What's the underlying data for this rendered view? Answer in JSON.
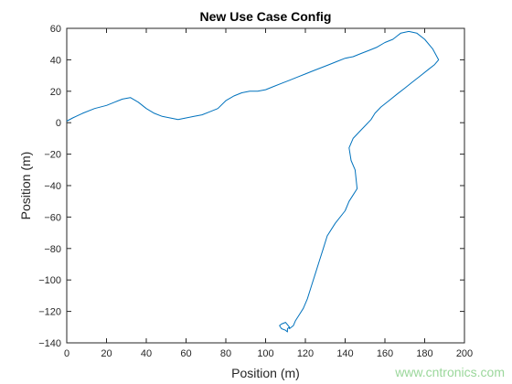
{
  "chart_data": {
    "type": "line",
    "title": "New Use Case Config",
    "xlabel": "Position (m)",
    "ylabel": "Position (m)",
    "xlim": [
      0,
      200
    ],
    "ylim": [
      -140,
      60
    ],
    "xticks": [
      0,
      20,
      40,
      60,
      80,
      100,
      120,
      140,
      160,
      180,
      200
    ],
    "yticks": [
      60,
      40,
      20,
      0,
      -20,
      -40,
      -60,
      -80,
      -100,
      -120,
      -140
    ],
    "grid": false,
    "line_color": "#0072bd",
    "series": [
      {
        "x": [
          0,
          3,
          8,
          14,
          20,
          24,
          28,
          32,
          36,
          40,
          44,
          48,
          52,
          56,
          60,
          64,
          68,
          72,
          76,
          80,
          84,
          88,
          92,
          96,
          100,
          104,
          108,
          112,
          116,
          120,
          124,
          128,
          132,
          136,
          140,
          144,
          148,
          152,
          156,
          160,
          164,
          166,
          168,
          172,
          176,
          180,
          184,
          187,
          185,
          182,
          178,
          174,
          170,
          166,
          162,
          158,
          155,
          153,
          150,
          147,
          144,
          142,
          143,
          145,
          146,
          144,
          142,
          140,
          135,
          131,
          129,
          127,
          125,
          123,
          121,
          119,
          117,
          115,
          114,
          112,
          112,
          111,
          111,
          110,
          108,
          107,
          108,
          110,
          112
        ],
        "y": [
          1,
          3,
          6,
          9,
          11,
          13,
          15,
          16,
          13,
          9,
          6,
          4,
          3,
          2,
          3,
          4,
          5,
          7,
          9,
          14,
          17,
          19,
          20,
          20,
          21,
          23,
          25,
          27,
          29,
          31,
          33,
          35,
          37,
          39,
          41,
          42,
          44,
          46,
          48,
          51,
          53,
          55,
          57,
          58,
          57,
          53,
          47,
          40,
          37,
          34,
          30,
          26,
          22,
          18,
          14,
          10,
          6,
          2,
          -2,
          -6,
          -10,
          -16,
          -24,
          -30,
          -42,
          -46,
          -50,
          -56,
          -64,
          -72,
          -80,
          -88,
          -96,
          -104,
          -112,
          -118,
          -122,
          -126,
          -129,
          -131,
          -130,
          -131,
          -133,
          -132,
          -131,
          -129,
          -128,
          -127,
          -130
        ]
      }
    ]
  },
  "watermark": "www.cntronics.com"
}
